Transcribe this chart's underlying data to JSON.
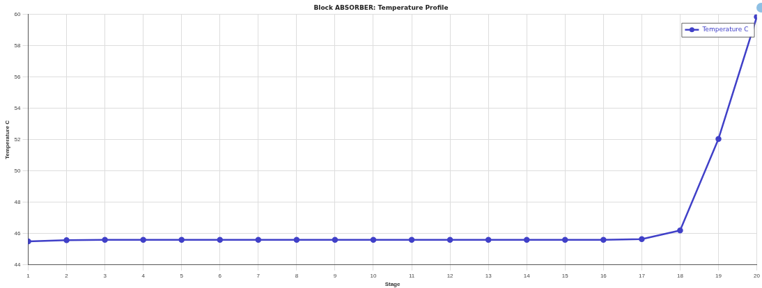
{
  "chart_data": {
    "type": "line",
    "title": "Block ABSORBER: Temperature Profile",
    "xlabel": "Stage",
    "ylabel": "Temperature C",
    "x": [
      1,
      2,
      3,
      4,
      5,
      6,
      7,
      8,
      9,
      10,
      11,
      12,
      13,
      14,
      15,
      16,
      17,
      18,
      19,
      20
    ],
    "series": [
      {
        "name": "Temperature C",
        "color": "#4040c8",
        "values": [
          45.5,
          45.58,
          45.6,
          45.6,
          45.6,
          45.6,
          45.6,
          45.6,
          45.6,
          45.6,
          45.6,
          45.6,
          45.6,
          45.6,
          45.6,
          45.6,
          45.65,
          46.2,
          52.05,
          59.85
        ]
      }
    ],
    "xlim": [
      1,
      20
    ],
    "xticks": [
      1,
      2,
      3,
      4,
      5,
      6,
      7,
      8,
      9,
      10,
      11,
      12,
      13,
      14,
      15,
      16,
      17,
      18,
      19,
      20
    ],
    "ylim": [
      44,
      60
    ],
    "yticks": [
      44,
      46,
      48,
      50,
      52,
      54,
      56,
      58,
      60
    ],
    "grid": true,
    "legend": "top right",
    "marker": "circle",
    "line_style": "solid"
  }
}
